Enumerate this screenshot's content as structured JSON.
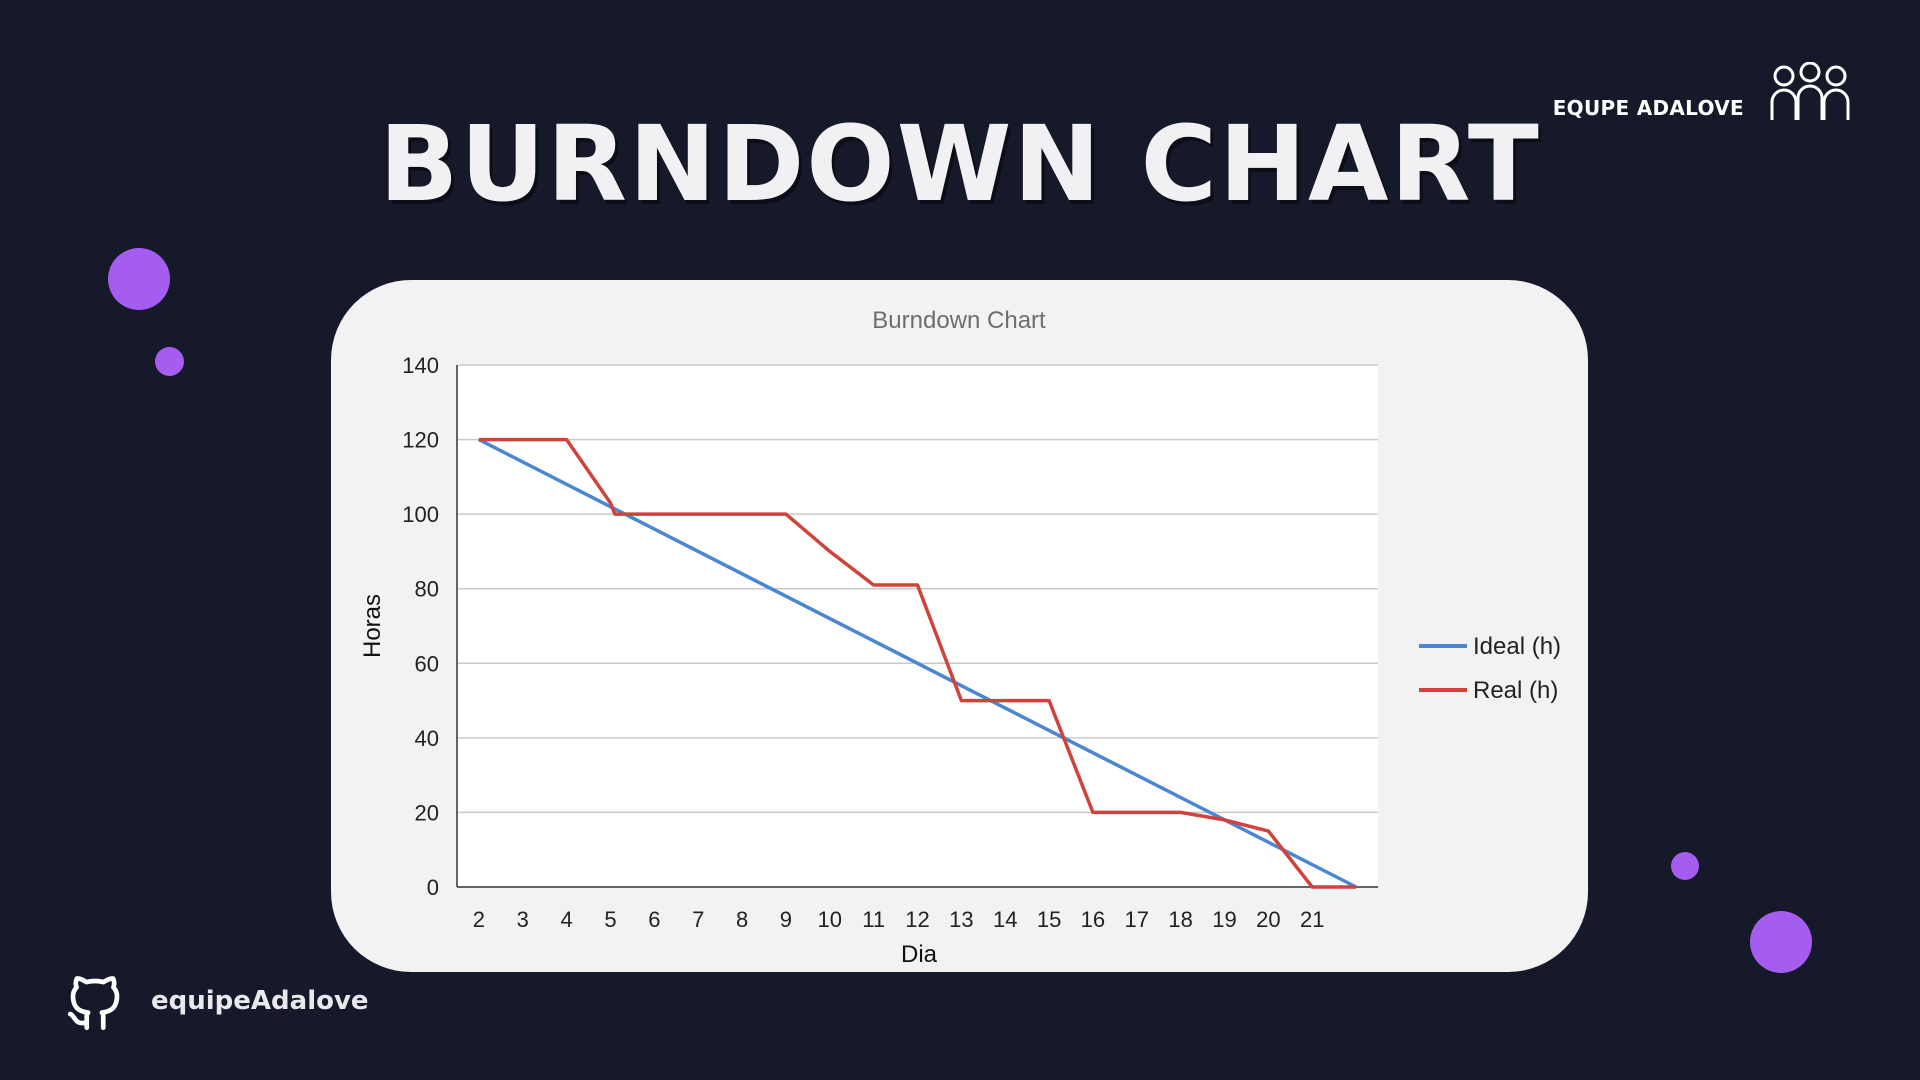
{
  "header": {
    "title": "BURNDOWN CHART",
    "team_label": "EQUPE ADALOVE",
    "team_icon": "people-group-icon"
  },
  "footer": {
    "github_icon": "github-octocat-icon",
    "handle": "equipeAdalove"
  },
  "colors": {
    "background": "#161929",
    "accent_dots": "#a55df0",
    "ideal_line": "#4a86d4",
    "real_line": "#d0423c"
  },
  "chart_data": {
    "type": "line",
    "title": "Burndown Chart",
    "xlabel": "Dia",
    "ylabel": "Horas",
    "ylim": [
      0,
      140
    ],
    "yticks": [
      0,
      20,
      40,
      60,
      80,
      100,
      120,
      140
    ],
    "x": [
      2,
      3,
      4,
      5,
      6,
      7,
      8,
      9,
      10,
      11,
      12,
      13,
      14,
      15,
      16,
      17,
      18,
      19,
      20,
      21
    ],
    "xlim": [
      1.5,
      22.5
    ],
    "grid": true,
    "legend": "right",
    "series": [
      {
        "name": "Ideal (h)",
        "color": "#4a86d4",
        "points": [
          [
            2,
            120
          ],
          [
            22,
            0
          ]
        ]
      },
      {
        "name": "Real (h)",
        "color": "#d0423c",
        "points": [
          [
            2,
            120
          ],
          [
            4,
            120
          ],
          [
            5,
            103
          ],
          [
            5.1,
            100
          ],
          [
            9,
            100
          ],
          [
            10,
            90
          ],
          [
            11,
            81
          ],
          [
            12,
            81
          ],
          [
            13,
            50
          ],
          [
            15,
            50
          ],
          [
            16,
            20
          ],
          [
            18,
            20
          ],
          [
            19,
            18
          ],
          [
            20,
            15
          ],
          [
            21,
            0
          ],
          [
            22,
            0
          ]
        ]
      }
    ]
  }
}
